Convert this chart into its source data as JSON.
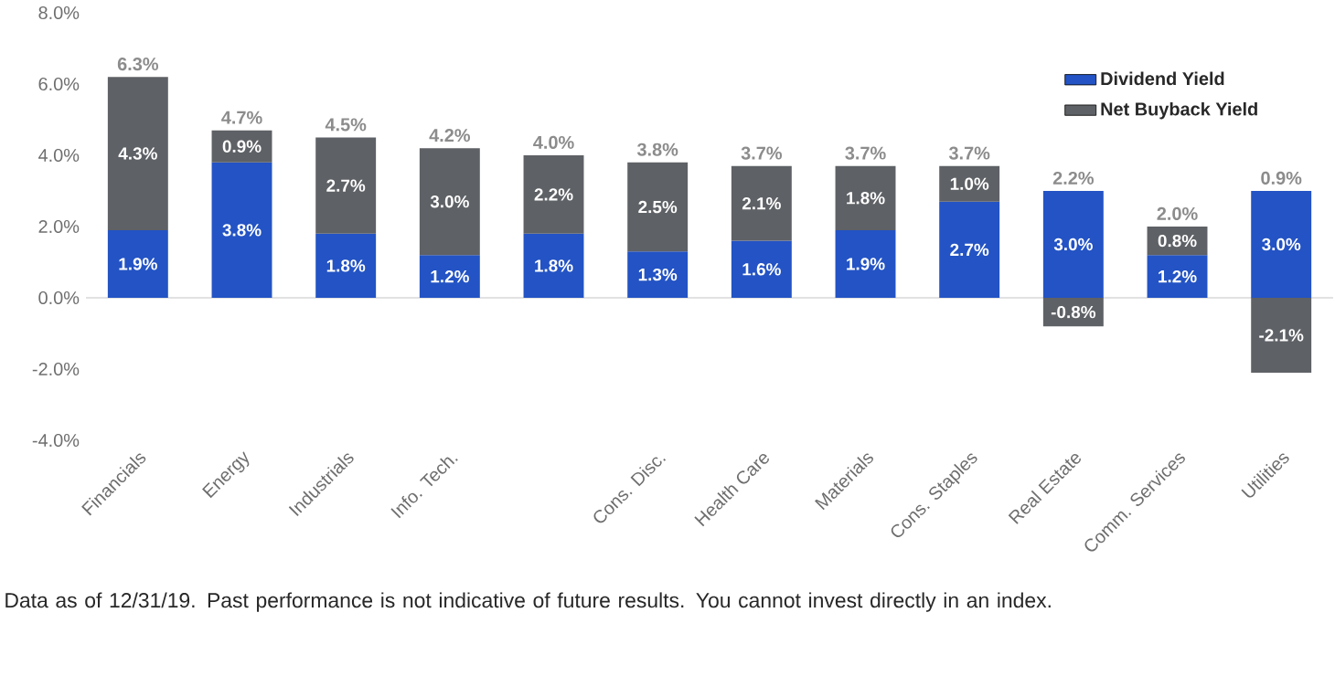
{
  "chart_data": {
    "type": "bar",
    "stacked": true,
    "categories": [
      "Financials",
      "Energy",
      "Industrials",
      "Info. Tech.",
      null,
      "Cons. Disc.",
      "Health Care",
      "Materials",
      "Cons. Staples",
      "Real Estate",
      "Comm. Services",
      "Utilities"
    ],
    "series": [
      {
        "name": "Dividend Yield",
        "color": "#2353c4",
        "values": [
          1.9,
          3.8,
          1.8,
          1.2,
          1.8,
          1.3,
          1.6,
          1.9,
          2.7,
          3.0,
          1.2,
          3.0
        ],
        "value_labels": [
          "1.9%",
          "3.8%",
          "1.8%",
          "1.2%",
          "1.8%",
          "1.3%",
          "1.6%",
          "1.9%",
          "2.7%",
          "3.0%",
          "1.2%",
          "3.0%"
        ]
      },
      {
        "name": "Net Buyback Yield",
        "color": "#5e6165",
        "values": [
          4.3,
          0.9,
          2.7,
          3.0,
          2.2,
          2.5,
          2.1,
          1.8,
          1.0,
          -0.8,
          0.8,
          -2.1
        ],
        "value_labels": [
          "4.3%",
          "0.9%",
          "2.7%",
          "3.0%",
          "2.2%",
          "2.5%",
          "2.1%",
          "1.8%",
          "1.0%",
          "-0.8%",
          "0.8%",
          "-2.1%"
        ]
      }
    ],
    "totals": [
      "6.3%",
      "4.7%",
      "4.5%",
      "4.2%",
      "4.0%",
      "3.8%",
      "3.7%",
      "3.7%",
      "3.7%",
      "2.2%",
      "2.0%",
      "0.9%"
    ],
    "ylim": [
      -4,
      8
    ],
    "yticks": [
      {
        "value": -4,
        "label": "-4.0%"
      },
      {
        "value": -2,
        "label": "-2.0%"
      },
      {
        "value": 0,
        "label": "0.0%"
      },
      {
        "value": 2,
        "label": "2.0%"
      },
      {
        "value": 4,
        "label": "4.0%"
      },
      {
        "value": 6,
        "label": "6.0%"
      },
      {
        "value": 8,
        "label": "8.0%"
      }
    ],
    "legend": "top right",
    "annotations": [
      "Data as of 12/31/19. Past performance is not indicative of future results. You cannot invest directly in an index."
    ]
  }
}
